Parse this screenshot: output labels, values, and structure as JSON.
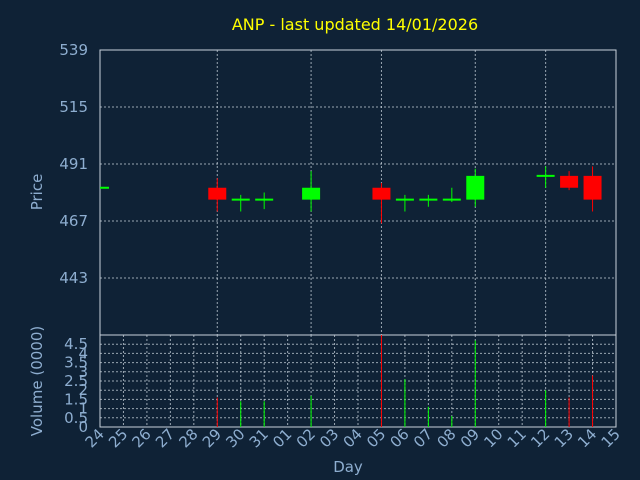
{
  "title": "ANP - last updated 14/01/2026",
  "colors": {
    "background": "#0f2236",
    "up": "#00ff00",
    "down": "#ff0000",
    "title": "#ffff00",
    "axis_text": "#8eaed0",
    "grid": "#c8d2dc"
  },
  "chart_data": [
    {
      "type": "candlestick",
      "ylabel": "Price",
      "ylim": [
        419,
        539
      ],
      "yticks": [
        "539",
        "515",
        "491",
        "467",
        "443"
      ],
      "grid": true,
      "categories": [
        "24",
        "25",
        "26",
        "27",
        "28",
        "29",
        "30",
        "31",
        "01",
        "02",
        "03",
        "04",
        "05",
        "06",
        "07",
        "08",
        "09",
        "10",
        "11",
        "12",
        "13",
        "14",
        "15"
      ],
      "candles": [
        {
          "day": "24",
          "open": 481,
          "close": 481,
          "high": 481,
          "low": 481
        },
        {
          "day": "29",
          "open": 481,
          "close": 476,
          "high": 485,
          "low": 471
        },
        {
          "day": "30",
          "open": 476,
          "close": 476,
          "high": 478,
          "low": 471
        },
        {
          "day": "31",
          "open": 476,
          "close": 476,
          "high": 479,
          "low": 472
        },
        {
          "day": "02",
          "open": 476,
          "close": 481,
          "high": 488,
          "low": 471
        },
        {
          "day": "05",
          "open": 481,
          "close": 476,
          "high": 483,
          "low": 466
        },
        {
          "day": "06",
          "open": 476,
          "close": 476,
          "high": 478,
          "low": 471
        },
        {
          "day": "07",
          "open": 476,
          "close": 476,
          "high": 478,
          "low": 473
        },
        {
          "day": "08",
          "open": 476,
          "close": 476,
          "high": 481,
          "low": 475
        },
        {
          "day": "09",
          "open": 476,
          "close": 486,
          "high": 489,
          "low": 473
        },
        {
          "day": "12",
          "open": 486,
          "close": 486,
          "high": 490,
          "low": 481
        },
        {
          "day": "13",
          "open": 486,
          "close": 481,
          "high": 488,
          "low": 480
        },
        {
          "day": "14",
          "open": 486,
          "close": 476,
          "high": 490,
          "low": 471
        }
      ]
    },
    {
      "type": "bar",
      "ylabel": "Volume (0000)",
      "xlabel": "Day",
      "ylim": [
        0,
        5
      ],
      "yticks": [
        "4.5",
        "4",
        "3.5",
        "3",
        "2.5",
        "2",
        "1.5",
        "1",
        "0.5",
        "0"
      ],
      "grid": true,
      "categories": [
        "24",
        "25",
        "26",
        "27",
        "28",
        "29",
        "30",
        "31",
        "01",
        "02",
        "03",
        "04",
        "05",
        "06",
        "07",
        "08",
        "09",
        "10",
        "11",
        "12",
        "13",
        "14",
        "15"
      ],
      "bars": [
        {
          "day": "29",
          "value": 1.6,
          "direction": "down"
        },
        {
          "day": "30",
          "value": 1.4,
          "direction": "up"
        },
        {
          "day": "31",
          "value": 1.4,
          "direction": "up"
        },
        {
          "day": "02",
          "value": 1.7,
          "direction": "up"
        },
        {
          "day": "05",
          "value": 5.0,
          "direction": "down"
        },
        {
          "day": "06",
          "value": 2.6,
          "direction": "up"
        },
        {
          "day": "07",
          "value": 1.1,
          "direction": "up"
        },
        {
          "day": "08",
          "value": 0.6,
          "direction": "up"
        },
        {
          "day": "09",
          "value": 4.7,
          "direction": "up"
        },
        {
          "day": "12",
          "value": 2.0,
          "direction": "up"
        },
        {
          "day": "13",
          "value": 1.6,
          "direction": "down"
        },
        {
          "day": "14",
          "value": 2.8,
          "direction": "down"
        }
      ]
    }
  ]
}
